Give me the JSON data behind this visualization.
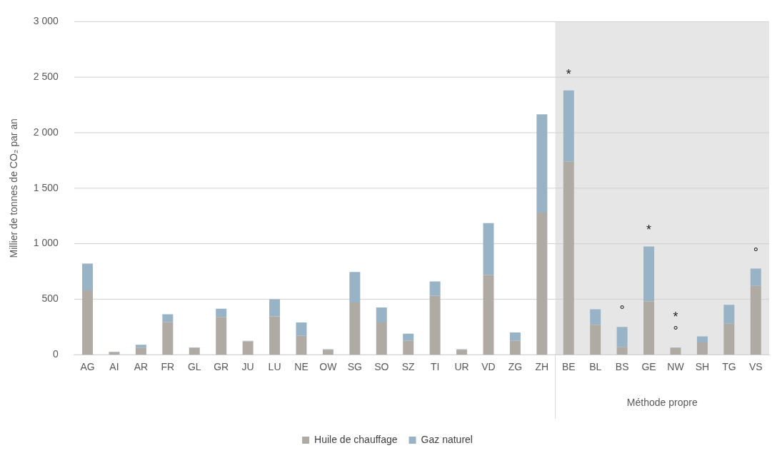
{
  "chart_data": {
    "type": "bar",
    "stacked": true,
    "ylabel": "Millier de tonnes de CO₂ par an",
    "categories": [
      "AG",
      "AI",
      "AR",
      "FR",
      "GL",
      "GR",
      "JU",
      "LU",
      "NE",
      "OW",
      "SG",
      "SO",
      "SZ",
      "TI",
      "UR",
      "VD",
      "ZG",
      "ZH",
      "BE",
      "BL",
      "BS",
      "GE",
      "NW",
      "SH",
      "TG",
      "VS"
    ],
    "series": [
      {
        "name": "Huile de chauffage",
        "color": "#b0aaa5",
        "values": [
          580,
          20,
          60,
          295,
          60,
          340,
          120,
          345,
          170,
          45,
          470,
          290,
          125,
          530,
          45,
          720,
          125,
          1280,
          1740,
          270,
          70,
          480,
          60,
          110,
          280,
          620
        ]
      },
      {
        "name": "Gaz naturel",
        "color": "#98b2c6",
        "values": [
          240,
          5,
          30,
          70,
          5,
          75,
          5,
          155,
          120,
          5,
          275,
          135,
          65,
          130,
          5,
          465,
          75,
          885,
          640,
          140,
          180,
          495,
          5,
          55,
          170,
          155
        ]
      }
    ],
    "ylim": [
      0,
      3000
    ],
    "yticks": [
      0,
      500,
      {
        "value": 1000,
        "label": "1 000"
      },
      {
        "value": 1500,
        "label": "1 500"
      },
      {
        "value": 2000,
        "label": "2 000"
      },
      {
        "value": 2500,
        "label": "2 500"
      },
      {
        "value": 3000,
        "label": "3 000"
      }
    ],
    "grid": "y",
    "legend": "bottom",
    "bands": [
      {
        "axis": "x",
        "from": "BE",
        "to": "VS",
        "color": "#e6e6e6"
      }
    ],
    "annotations": [
      {
        "text": "*",
        "x": "BE",
        "y": 2380
      },
      {
        "text": "°",
        "x": "BS",
        "y": 250
      },
      {
        "text": "*",
        "x": "GE",
        "y": 975
      },
      {
        "text": "°",
        "x": "NW",
        "y": 65
      },
      {
        "text": "*",
        "x": "NW",
        "y": 65
      },
      {
        "text": "°",
        "x": "VS",
        "y": 775
      },
      "Méthode propre"
    ]
  }
}
